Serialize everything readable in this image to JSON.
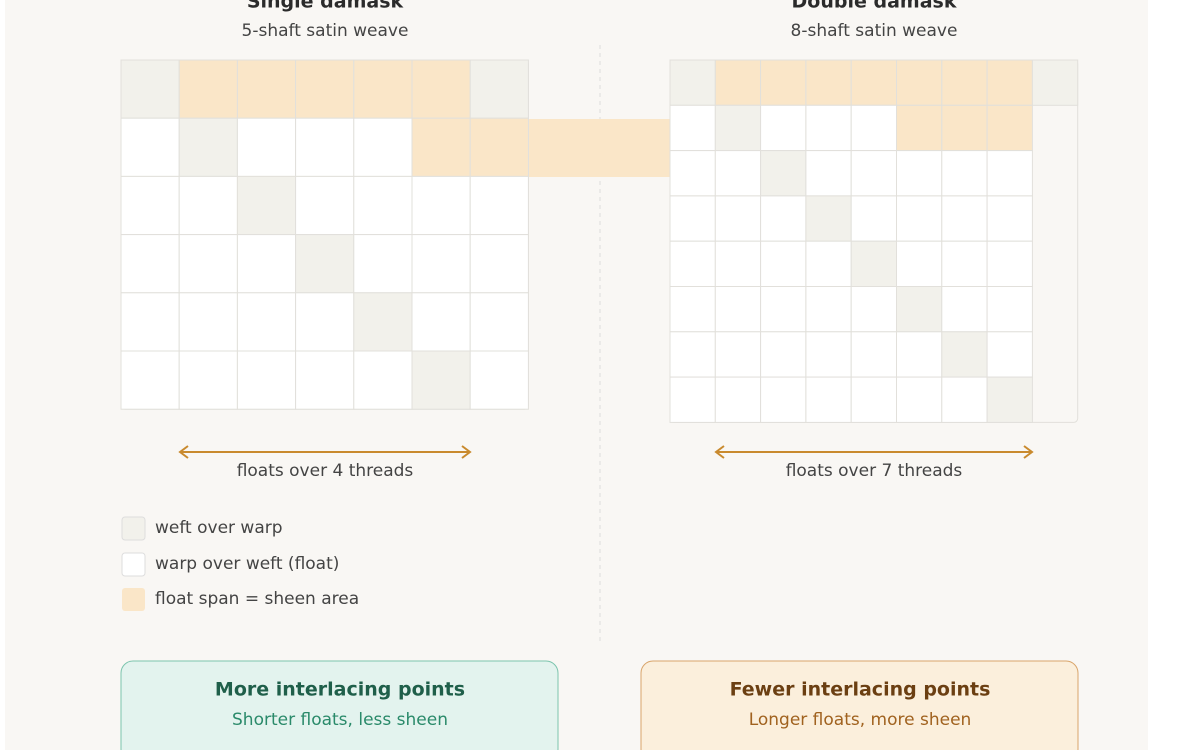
{
  "panels": [
    {
      "title": "Single damask",
      "subtitle": "5-shaft satin weave",
      "float_label": "floats over 4 threads"
    },
    {
      "title": "Double damask",
      "subtitle": "8-shaft satin weave",
      "float_label": "floats over 7 threads"
    }
  ],
  "legend": [
    "weft over warp",
    "warp over weft (float)",
    "float span = sheen area"
  ],
  "summary": [
    {
      "title": "More interlacing points",
      "subtitle": "Shorter floats, less sheen"
    },
    {
      "title": "Fewer interlacing points",
      "subtitle": "Longer floats, more sheen"
    }
  ]
}
